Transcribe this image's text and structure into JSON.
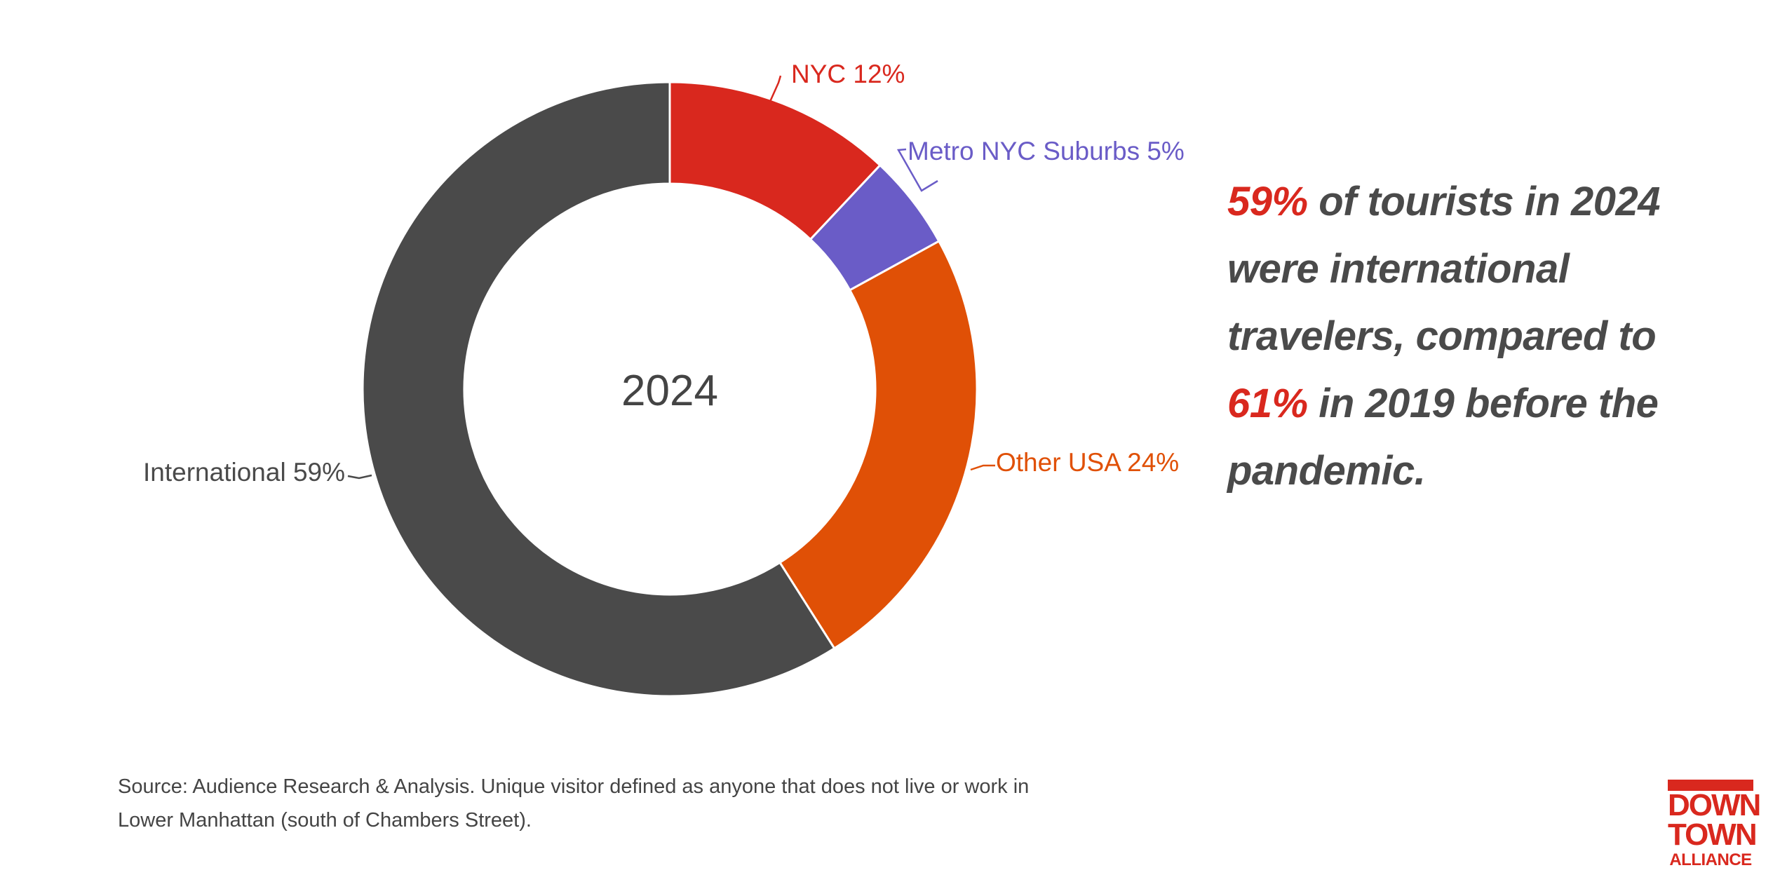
{
  "chart_data": {
    "type": "pie",
    "center_label": "2024",
    "slices": [
      {
        "label": "NYC 12%",
        "value": 12,
        "color": "#d9281e"
      },
      {
        "label": "Metro NYC Suburbs 5%",
        "value": 5,
        "color": "#6a5cc7"
      },
      {
        "label": "Other USA 24%",
        "value": 24,
        "color": "#e05006"
      },
      {
        "label": "International 59%",
        "value": 59,
        "color": "#4a4a4a"
      }
    ]
  },
  "callout": {
    "hl1": "59%",
    "text1": " of tourists in 2024 were international travelers, compared to ",
    "hl2": "61%",
    "text2": " in 2019 before the pandemic."
  },
  "source": {
    "line1": "Source: Audience Research & Analysis. Unique visitor defined as anyone that does not live or work in",
    "line2": "Lower Manhattan (south of Chambers Street)."
  },
  "logo": {
    "line1": "DOWN",
    "line2": "TOWN",
    "line3": "ALLIANCE"
  }
}
